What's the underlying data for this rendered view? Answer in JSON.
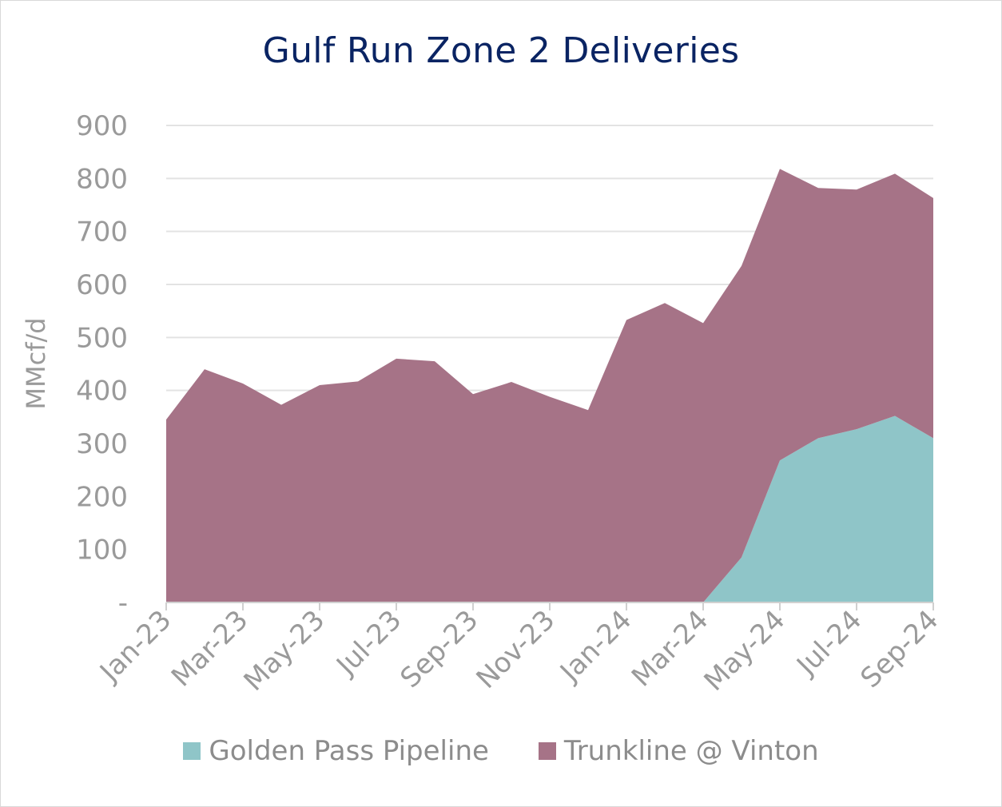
{
  "chart_data": {
    "type": "area",
    "stacked": true,
    "title": "Gulf Run Zone 2 Deliveries",
    "ylabel": "MMcf/d",
    "xlabel": "",
    "ylim": [
      0,
      900
    ],
    "yticks": [
      0,
      100,
      200,
      300,
      400,
      500,
      600,
      700,
      800,
      900
    ],
    "ytick_labels": [
      "-",
      "100",
      "200",
      "300",
      "400",
      "500",
      "600",
      "700",
      "800",
      "900"
    ],
    "grid": true,
    "legend_position": "bottom",
    "x": [
      "Jan-23",
      "Feb-23",
      "Mar-23",
      "Apr-23",
      "May-23",
      "Jun-23",
      "Jul-23",
      "Aug-23",
      "Sep-23",
      "Oct-23",
      "Nov-23",
      "Dec-23",
      "Jan-24",
      "Feb-24",
      "Mar-24",
      "Apr-24",
      "May-24",
      "Jun-24",
      "Jul-24",
      "Aug-24",
      "Sep-24"
    ],
    "xtick_labels": [
      "Jan-23",
      "Mar-23",
      "May-23",
      "Jul-23",
      "Sep-23",
      "Nov-23",
      "Jan-24",
      "Mar-24",
      "May-24",
      "Jul-24",
      "Sep-24"
    ],
    "series": [
      {
        "name": "Golden Pass Pipeline",
        "color": "#8fc5c8",
        "values": [
          0,
          0,
          0,
          0,
          0,
          0,
          0,
          0,
          0,
          0,
          0,
          0,
          0,
          0,
          0,
          85,
          268,
          310,
          327,
          352,
          310
        ]
      },
      {
        "name": "Trunkline @ Vinton",
        "color": "#a67387",
        "values": [
          345,
          440,
          413,
          373,
          410,
          417,
          460,
          455,
          393,
          416,
          388,
          363,
          533,
          565,
          527,
          550,
          550,
          472,
          452,
          457,
          453
        ]
      }
    ]
  }
}
